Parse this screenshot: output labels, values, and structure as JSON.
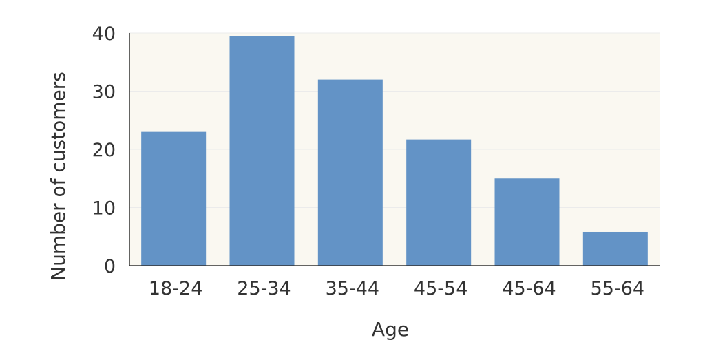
{
  "chart_data": {
    "type": "bar",
    "categories": [
      "18-24",
      "25-34",
      "35-44",
      "45-54",
      "45-64",
      "55-64"
    ],
    "values": [
      23,
      39.5,
      32,
      21.7,
      15,
      5.8
    ],
    "title": "",
    "xlabel": "Age",
    "ylabel": "Number of customers",
    "ylim": [
      0,
      40
    ],
    "yticks": [
      0,
      10,
      20,
      30,
      40
    ],
    "grid": true,
    "colors": {
      "bar": "#6393c6",
      "plot_background": "#faf8f1",
      "axis": "#333333",
      "grid": "#ebebeb"
    }
  }
}
